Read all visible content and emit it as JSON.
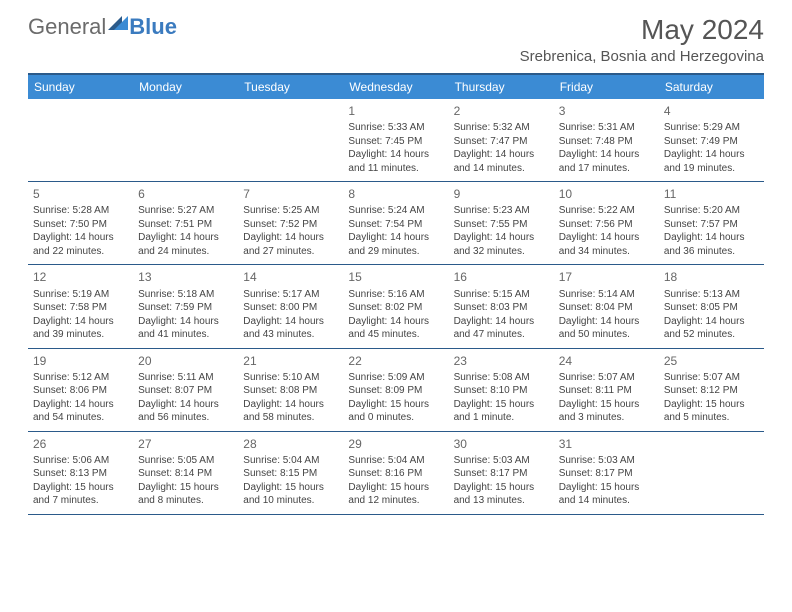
{
  "brand": {
    "part1": "General",
    "part2": "Blue"
  },
  "title": "May 2024",
  "location": "Srebrenica, Bosnia and Herzegovina",
  "colors": {
    "header_bg": "#3b8bd4",
    "border": "#2b5a8a",
    "text": "#444444",
    "brand_gray": "#6b6b6b",
    "brand_blue": "#3b7bbf"
  },
  "weekdays": [
    "Sunday",
    "Monday",
    "Tuesday",
    "Wednesday",
    "Thursday",
    "Friday",
    "Saturday"
  ],
  "weeks": [
    [
      {
        "n": "",
        "sr": "",
        "ss": "",
        "dl": ""
      },
      {
        "n": "",
        "sr": "",
        "ss": "",
        "dl": ""
      },
      {
        "n": "",
        "sr": "",
        "ss": "",
        "dl": ""
      },
      {
        "n": "1",
        "sr": "5:33 AM",
        "ss": "7:45 PM",
        "dl": "14 hours and 11 minutes."
      },
      {
        "n": "2",
        "sr": "5:32 AM",
        "ss": "7:47 PM",
        "dl": "14 hours and 14 minutes."
      },
      {
        "n": "3",
        "sr": "5:31 AM",
        "ss": "7:48 PM",
        "dl": "14 hours and 17 minutes."
      },
      {
        "n": "4",
        "sr": "5:29 AM",
        "ss": "7:49 PM",
        "dl": "14 hours and 19 minutes."
      }
    ],
    [
      {
        "n": "5",
        "sr": "5:28 AM",
        "ss": "7:50 PM",
        "dl": "14 hours and 22 minutes."
      },
      {
        "n": "6",
        "sr": "5:27 AM",
        "ss": "7:51 PM",
        "dl": "14 hours and 24 minutes."
      },
      {
        "n": "7",
        "sr": "5:25 AM",
        "ss": "7:52 PM",
        "dl": "14 hours and 27 minutes."
      },
      {
        "n": "8",
        "sr": "5:24 AM",
        "ss": "7:54 PM",
        "dl": "14 hours and 29 minutes."
      },
      {
        "n": "9",
        "sr": "5:23 AM",
        "ss": "7:55 PM",
        "dl": "14 hours and 32 minutes."
      },
      {
        "n": "10",
        "sr": "5:22 AM",
        "ss": "7:56 PM",
        "dl": "14 hours and 34 minutes."
      },
      {
        "n": "11",
        "sr": "5:20 AM",
        "ss": "7:57 PM",
        "dl": "14 hours and 36 minutes."
      }
    ],
    [
      {
        "n": "12",
        "sr": "5:19 AM",
        "ss": "7:58 PM",
        "dl": "14 hours and 39 minutes."
      },
      {
        "n": "13",
        "sr": "5:18 AM",
        "ss": "7:59 PM",
        "dl": "14 hours and 41 minutes."
      },
      {
        "n": "14",
        "sr": "5:17 AM",
        "ss": "8:00 PM",
        "dl": "14 hours and 43 minutes."
      },
      {
        "n": "15",
        "sr": "5:16 AM",
        "ss": "8:02 PM",
        "dl": "14 hours and 45 minutes."
      },
      {
        "n": "16",
        "sr": "5:15 AM",
        "ss": "8:03 PM",
        "dl": "14 hours and 47 minutes."
      },
      {
        "n": "17",
        "sr": "5:14 AM",
        "ss": "8:04 PM",
        "dl": "14 hours and 50 minutes."
      },
      {
        "n": "18",
        "sr": "5:13 AM",
        "ss": "8:05 PM",
        "dl": "14 hours and 52 minutes."
      }
    ],
    [
      {
        "n": "19",
        "sr": "5:12 AM",
        "ss": "8:06 PM",
        "dl": "14 hours and 54 minutes."
      },
      {
        "n": "20",
        "sr": "5:11 AM",
        "ss": "8:07 PM",
        "dl": "14 hours and 56 minutes."
      },
      {
        "n": "21",
        "sr": "5:10 AM",
        "ss": "8:08 PM",
        "dl": "14 hours and 58 minutes."
      },
      {
        "n": "22",
        "sr": "5:09 AM",
        "ss": "8:09 PM",
        "dl": "15 hours and 0 minutes."
      },
      {
        "n": "23",
        "sr": "5:08 AM",
        "ss": "8:10 PM",
        "dl": "15 hours and 1 minute."
      },
      {
        "n": "24",
        "sr": "5:07 AM",
        "ss": "8:11 PM",
        "dl": "15 hours and 3 minutes."
      },
      {
        "n": "25",
        "sr": "5:07 AM",
        "ss": "8:12 PM",
        "dl": "15 hours and 5 minutes."
      }
    ],
    [
      {
        "n": "26",
        "sr": "5:06 AM",
        "ss": "8:13 PM",
        "dl": "15 hours and 7 minutes."
      },
      {
        "n": "27",
        "sr": "5:05 AM",
        "ss": "8:14 PM",
        "dl": "15 hours and 8 minutes."
      },
      {
        "n": "28",
        "sr": "5:04 AM",
        "ss": "8:15 PM",
        "dl": "15 hours and 10 minutes."
      },
      {
        "n": "29",
        "sr": "5:04 AM",
        "ss": "8:16 PM",
        "dl": "15 hours and 12 minutes."
      },
      {
        "n": "30",
        "sr": "5:03 AM",
        "ss": "8:17 PM",
        "dl": "15 hours and 13 minutes."
      },
      {
        "n": "31",
        "sr": "5:03 AM",
        "ss": "8:17 PM",
        "dl": "15 hours and 14 minutes."
      },
      {
        "n": "",
        "sr": "",
        "ss": "",
        "dl": ""
      }
    ]
  ],
  "labels": {
    "sunrise": "Sunrise:",
    "sunset": "Sunset:",
    "daylight": "Daylight:"
  }
}
